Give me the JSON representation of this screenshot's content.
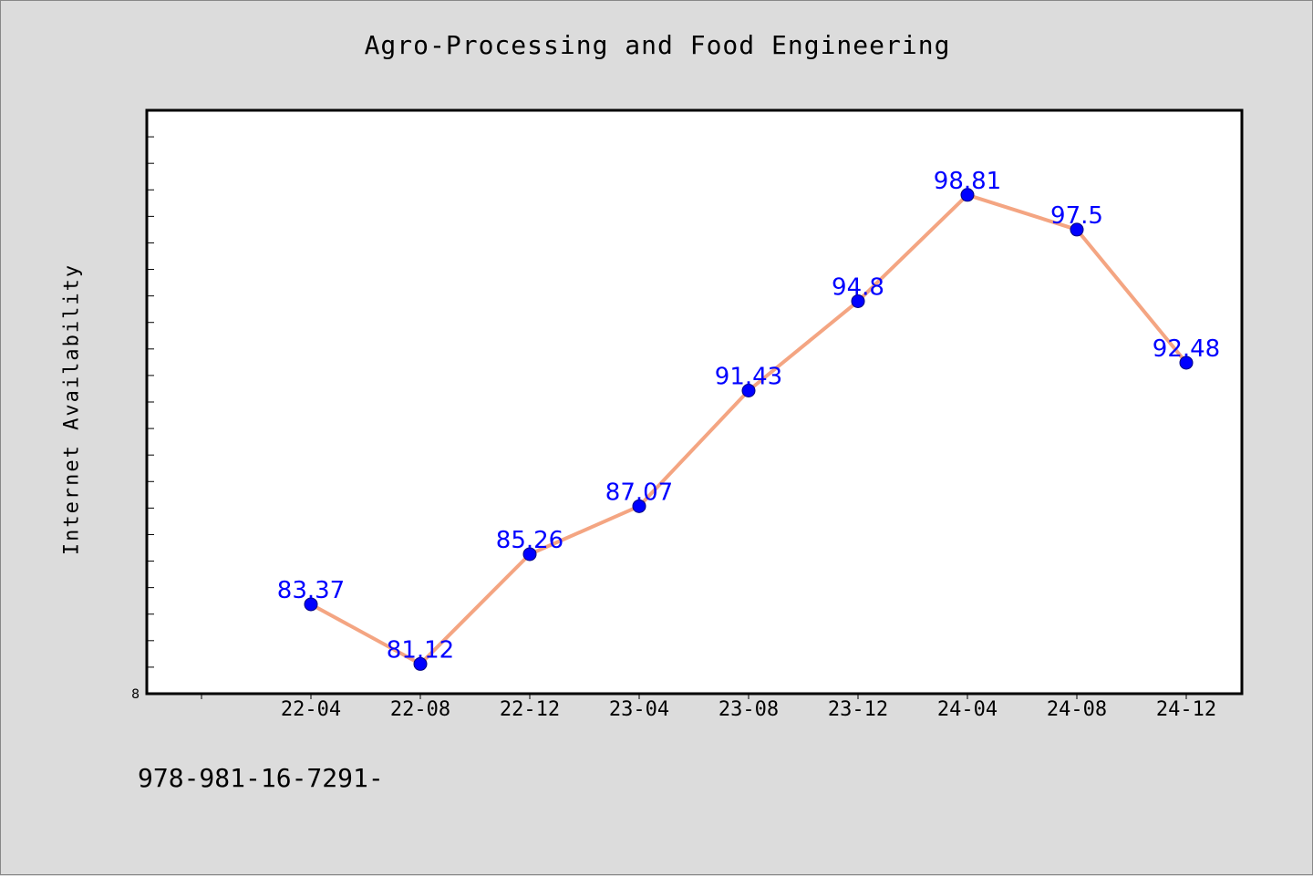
{
  "page": {
    "background": "#dcdcdc",
    "footer_code": "978-981-16-7291-"
  },
  "chart_data": {
    "type": "line",
    "title": "Agro-Processing and Food Engineering",
    "xlabel": "",
    "ylabel": "Internet Availability",
    "categories": [
      "22-04",
      "22-08",
      "22-12",
      "23-04",
      "23-08",
      "23-12",
      "24-04",
      "24-08",
      "24-12"
    ],
    "values": [
      83.37,
      81.12,
      85.26,
      87.07,
      91.43,
      94.8,
      98.81,
      97.5,
      92.48
    ],
    "data_labels": [
      "83.37",
      "81.12",
      "85.26",
      "87.07",
      "91.43",
      "94.8",
      "98.81",
      "97.5",
      "92.48"
    ],
    "ylim": [
      80,
      102
    ],
    "y_min_label": "8",
    "y_minor_tick_step": 1,
    "grid": false,
    "legend": "none",
    "colors": {
      "line": "#f4a582",
      "marker": "#0000ff",
      "marker_edge": "#000080",
      "data_label": "#0000ff",
      "plot_background": "#ffffff",
      "axes": "#000000"
    }
  }
}
